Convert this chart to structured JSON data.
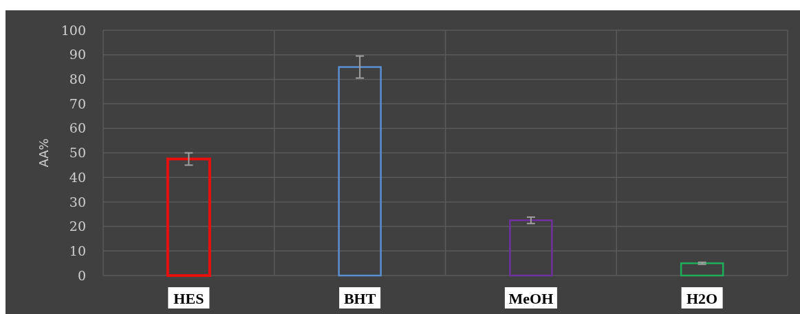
{
  "chart_data": {
    "type": "bar",
    "ylabel": "AA%",
    "categories": [
      "HES",
      "BHT",
      "MeOH",
      "H2O"
    ],
    "values": [
      47.5,
      85,
      22.5,
      5
    ],
    "errors": [
      2.5,
      4.5,
      1.3,
      0.4
    ],
    "colors": [
      "#e8100f",
      "#5b8fd4",
      "#7030a0",
      "#1faf5a"
    ],
    "ylim": [
      0,
      100
    ],
    "yticks": [
      0,
      10,
      20,
      30,
      40,
      50,
      60,
      70,
      80,
      90,
      100
    ],
    "grid": true
  }
}
